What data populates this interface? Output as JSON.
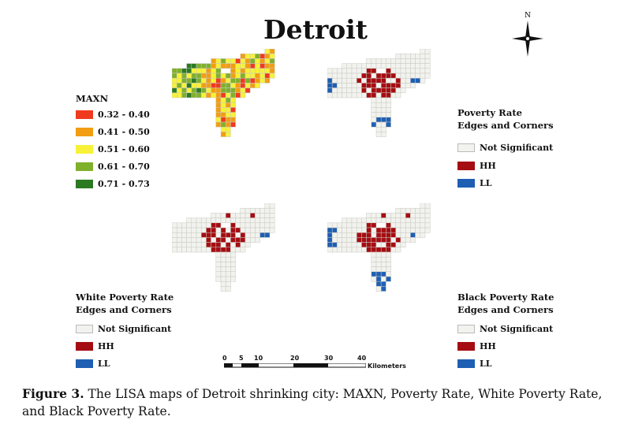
{
  "title": "Detroit",
  "north_label": "N",
  "legends": {
    "maxn": {
      "title": "MAXN",
      "items": [
        {
          "label": "0.32 - 0.40",
          "color": "#f03a1e"
        },
        {
          "label": "0.41 - 0.50",
          "color": "#f29d12"
        },
        {
          "label": "0.51 - 0.60",
          "color": "#f7f238"
        },
        {
          "label": "0.61 - 0.70",
          "color": "#7fb02c"
        },
        {
          "label": "0.71 - 0.73",
          "color": "#2b7a22"
        }
      ]
    },
    "poverty": {
      "title_line1": "Poverty Rate",
      "title_line2": "Edges and Corners",
      "items": [
        {
          "label": "Not Significant",
          "color": "#f2f2ee"
        },
        {
          "label": "HH",
          "color": "#a50d12"
        },
        {
          "label": "LL",
          "color": "#1f5fb3"
        }
      ]
    },
    "white_poverty": {
      "title_line1": "White Poverty Rate",
      "title_line2": "Edges and Corners",
      "items": [
        {
          "label": "Not Significant",
          "color": "#f2f2ee"
        },
        {
          "label": "HH",
          "color": "#a50d12"
        },
        {
          "label": "LL",
          "color": "#1f5fb3"
        }
      ]
    },
    "black_poverty": {
      "title_line1": "Black Poverty Rate",
      "title_line2": "Edges and Corners",
      "items": [
        {
          "label": "Not Significant",
          "color": "#f2f2ee"
        },
        {
          "label": "HH",
          "color": "#a50d12"
        },
        {
          "label": "LL",
          "color": "#1f5fb3"
        }
      ]
    }
  },
  "scale": {
    "ticks": [
      "0",
      "5",
      "10",
      "20",
      "30",
      "40"
    ],
    "unit": "Kilometers"
  },
  "caption": {
    "label": "Figure 3.",
    "text": " The LISA maps of Detroit shrinking city: MAXN, Poverty Rate, White Poverty Rate, and Black Poverty Rate."
  }
}
